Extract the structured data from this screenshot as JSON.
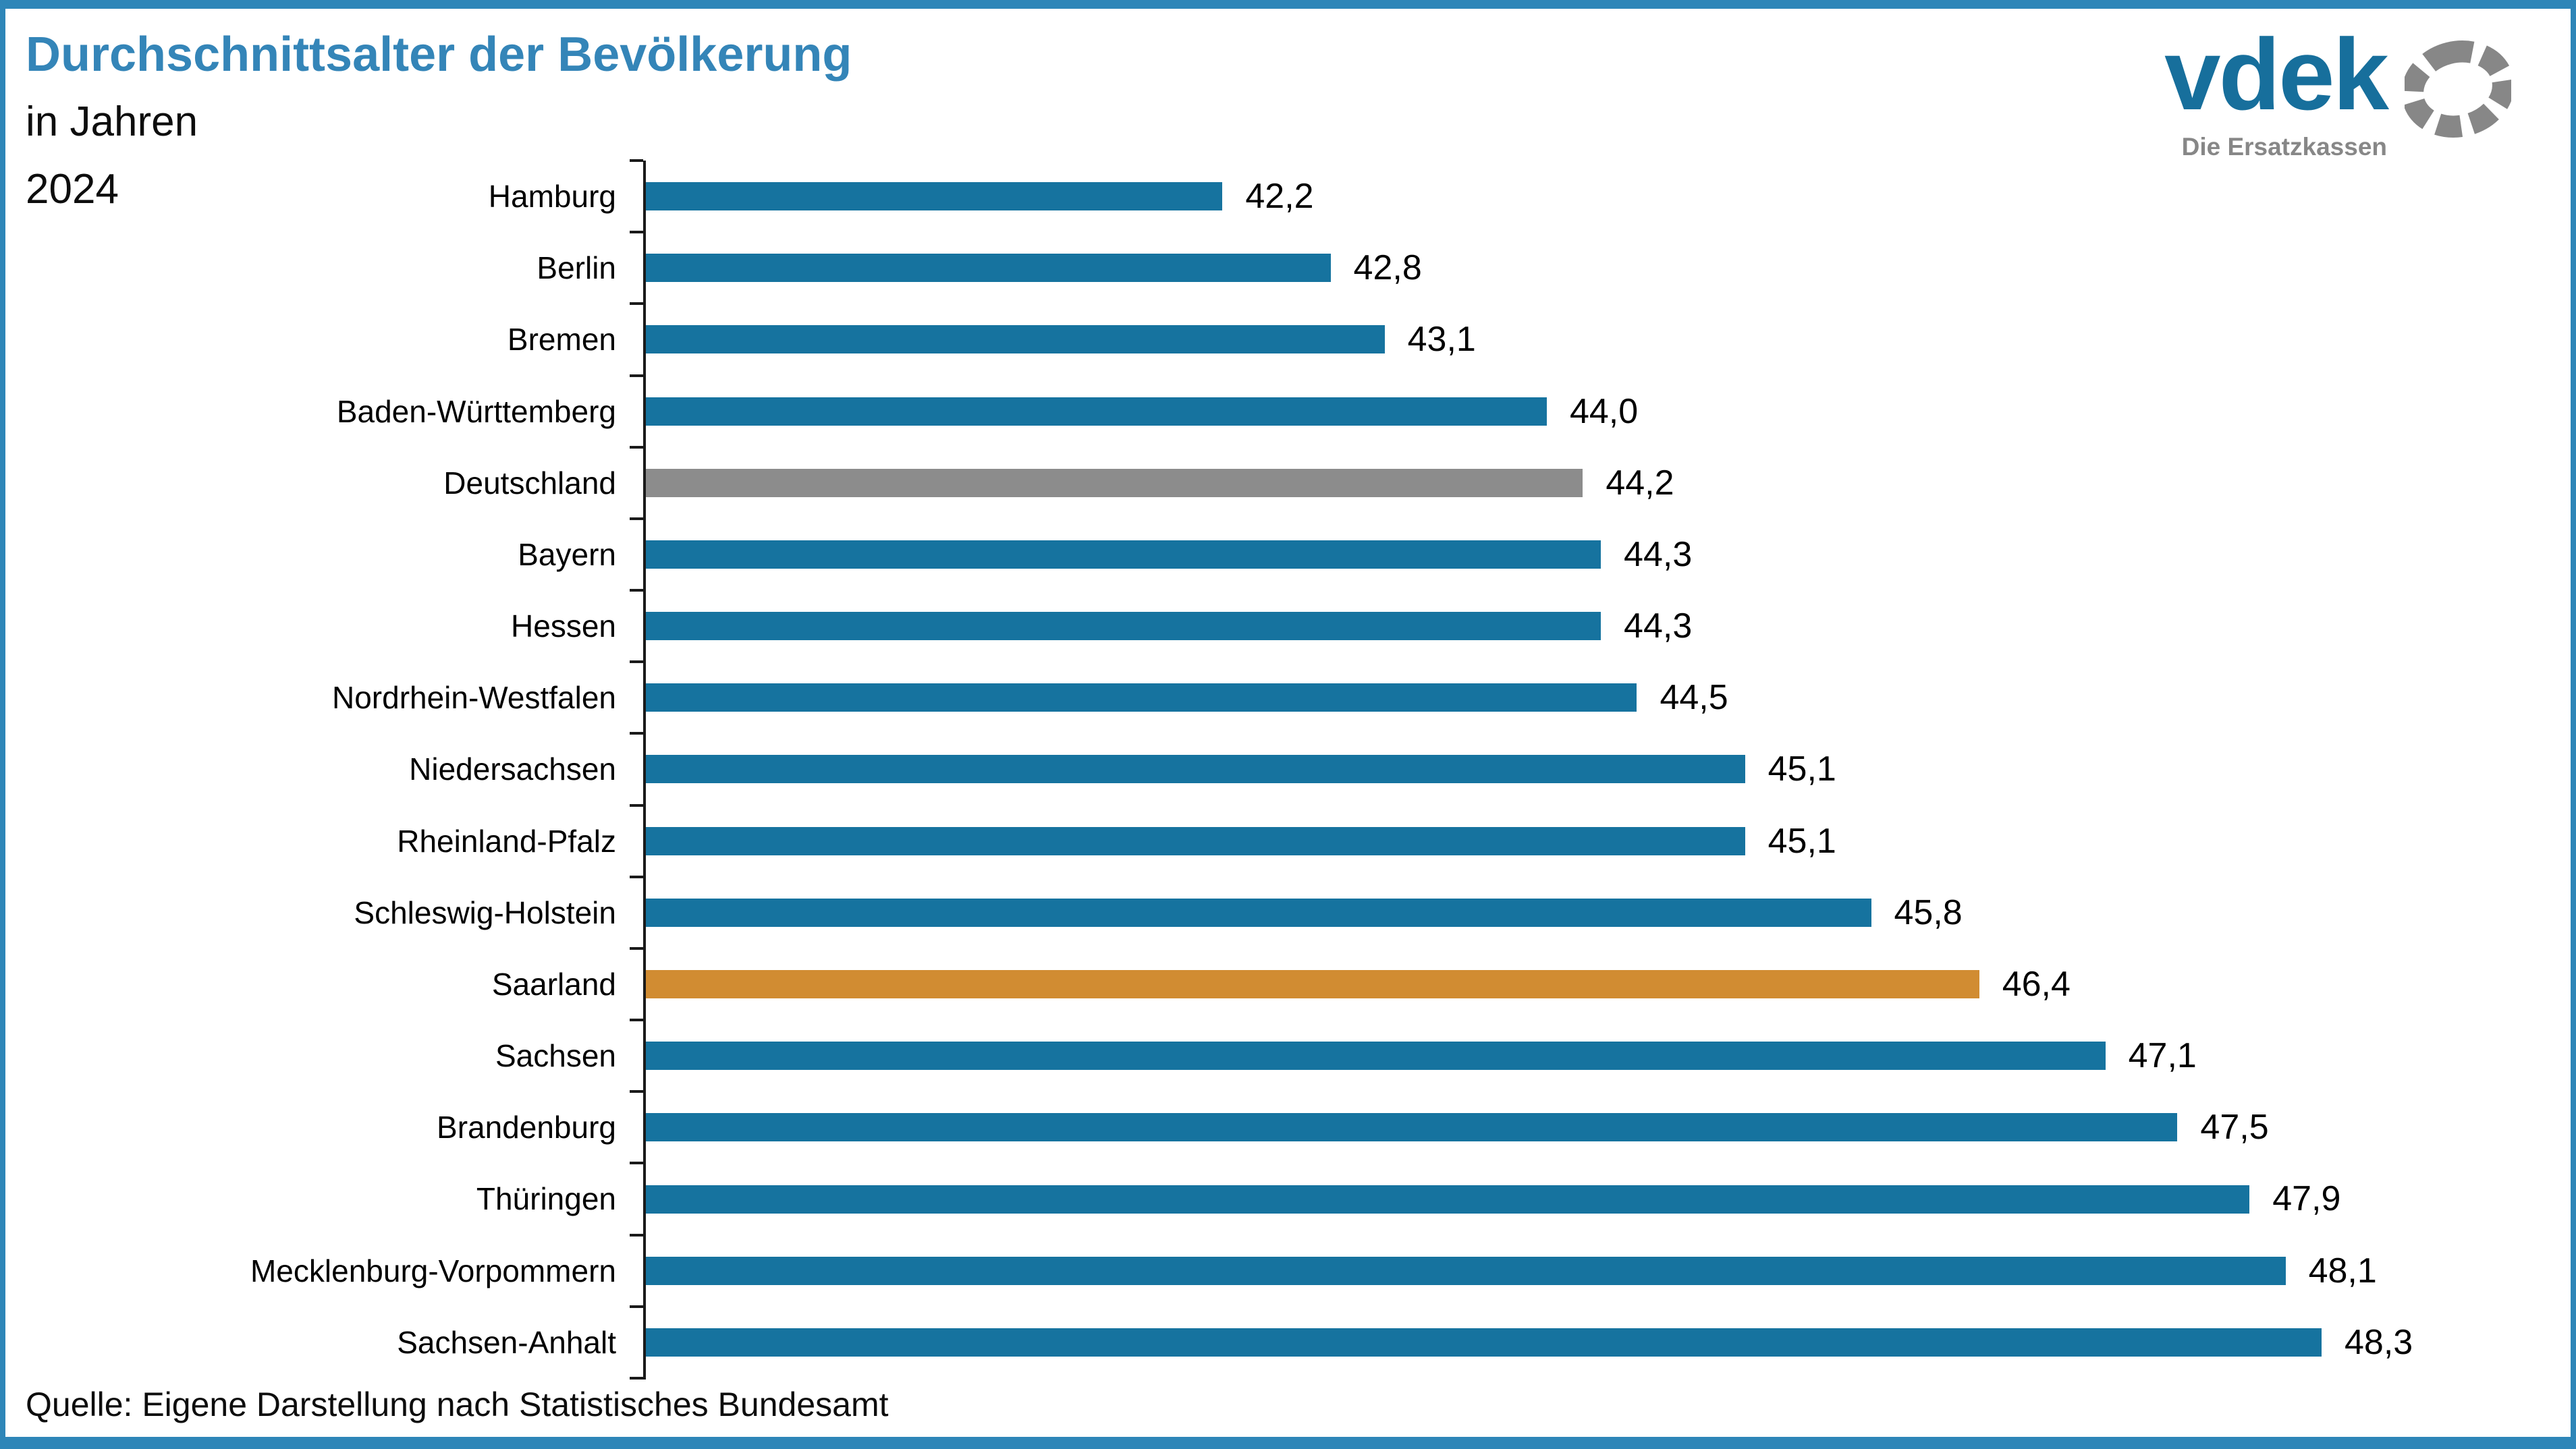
{
  "logo": {
    "text": "vdek",
    "tagline": "Die Ersatzkassen",
    "ring_icon": "vdek-ring-icon"
  },
  "colors": {
    "frame_blue": "#2e86b8",
    "title_blue": "#3485b8",
    "bar_blue": "#16739f",
    "bar_gray_germany": "#8c8c8c",
    "bar_orange_saarland": "#d18c32",
    "logo_blue": "#176f9c",
    "logo_gray": "#878787",
    "axis_black": "#1a1a1a"
  },
  "chart_data": {
    "type": "bar",
    "orientation": "horizontal",
    "title": "Durchschnittsalter der Bevölkerung",
    "subtitle": "in Jahren",
    "year": "2024",
    "source": "Quelle: Eigene Darstellung nach Statistisches Bundesamt",
    "categories": [
      "Hamburg",
      "Berlin",
      "Bremen",
      "Baden-Württemberg",
      "Deutschland",
      "Bayern",
      "Hessen",
      "Nordrhein-Westfalen",
      "Niedersachsen",
      "Rheinland-Pfalz",
      "Schleswig-Holstein",
      "Saarland",
      "Sachsen",
      "Brandenburg",
      "Thüringen",
      "Mecklenburg-Vorpommern",
      "Sachsen-Anhalt"
    ],
    "values": [
      42.2,
      42.8,
      43.1,
      44.0,
      44.2,
      44.3,
      44.3,
      44.5,
      45.1,
      45.1,
      45.8,
      46.4,
      47.1,
      47.5,
      47.9,
      48.1,
      48.3
    ],
    "value_labels": [
      "42,2",
      "42,8",
      "43,1",
      "44,0",
      "44,2",
      "44,3",
      "44,3",
      "44,5",
      "45,1",
      "45,1",
      "45,8",
      "46,4",
      "47,1",
      "47,5",
      "47,9",
      "48,1",
      "48,3"
    ],
    "bar_color_default": "#16739f",
    "highlight_colors": {
      "Deutschland": "#8c8c8c",
      "Saarland": "#d18c32"
    },
    "xlabel": "",
    "ylabel": "",
    "xlim": [
      39.0,
      48.3
    ],
    "grid": false,
    "legend": false
  }
}
